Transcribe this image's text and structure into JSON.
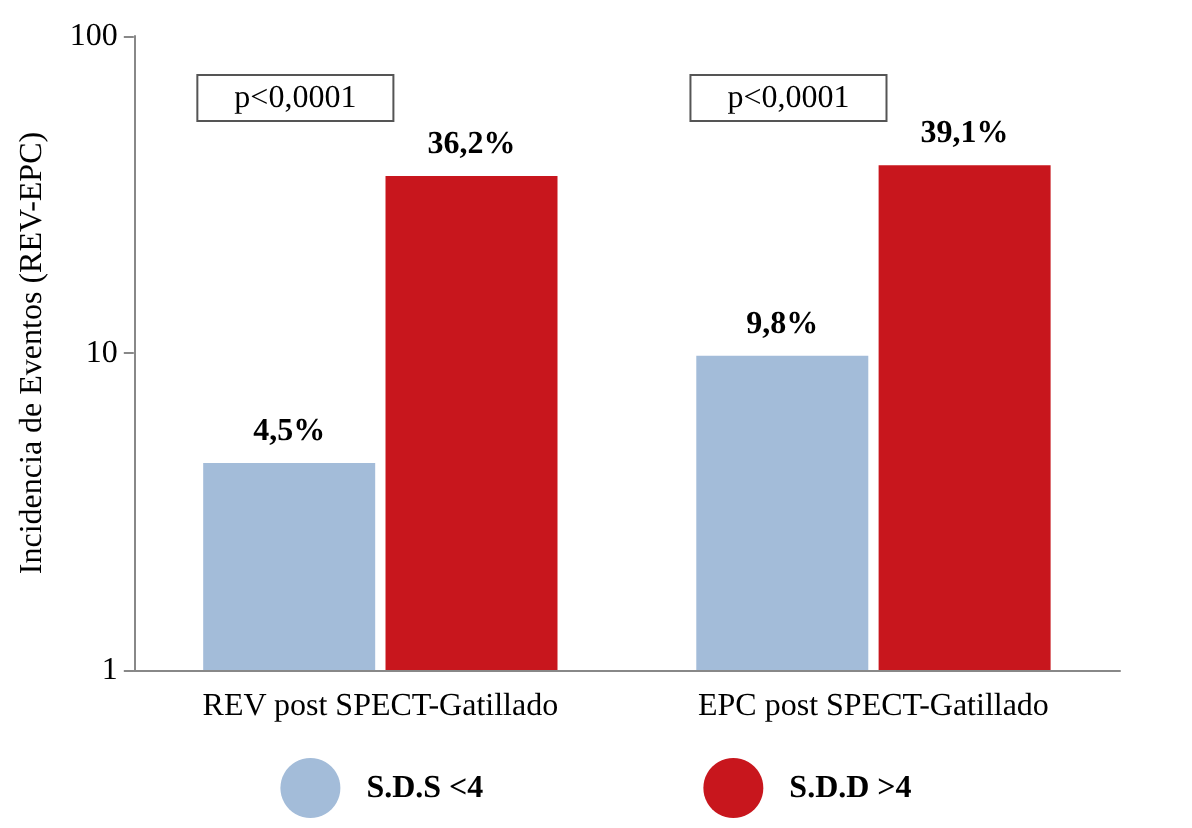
{
  "chart_data": {
    "type": "bar",
    "ylabel": "Incidencia de Eventos (REV-EPC)",
    "categories": [
      "REV post SPECT-Gatillado",
      "EPC post SPECT-Gatillado"
    ],
    "series": [
      {
        "name": "S.D.S <4",
        "color": "#a3bcd9",
        "values": [
          4.5,
          9.8
        ],
        "value_labels": [
          "4,5%",
          "9,8%"
        ]
      },
      {
        "name": "S.D.D >4",
        "color": "#c8161d",
        "values": [
          36.2,
          39.1
        ],
        "value_labels": [
          "36,2%",
          "39,1%"
        ]
      }
    ],
    "annotations": [
      "p<0,0001",
      "p<0,0001"
    ],
    "log": true,
    "ylim": [
      1,
      100
    ],
    "yticks": [
      1,
      10,
      100
    ],
    "grid": false,
    "legend": "bottom"
  }
}
